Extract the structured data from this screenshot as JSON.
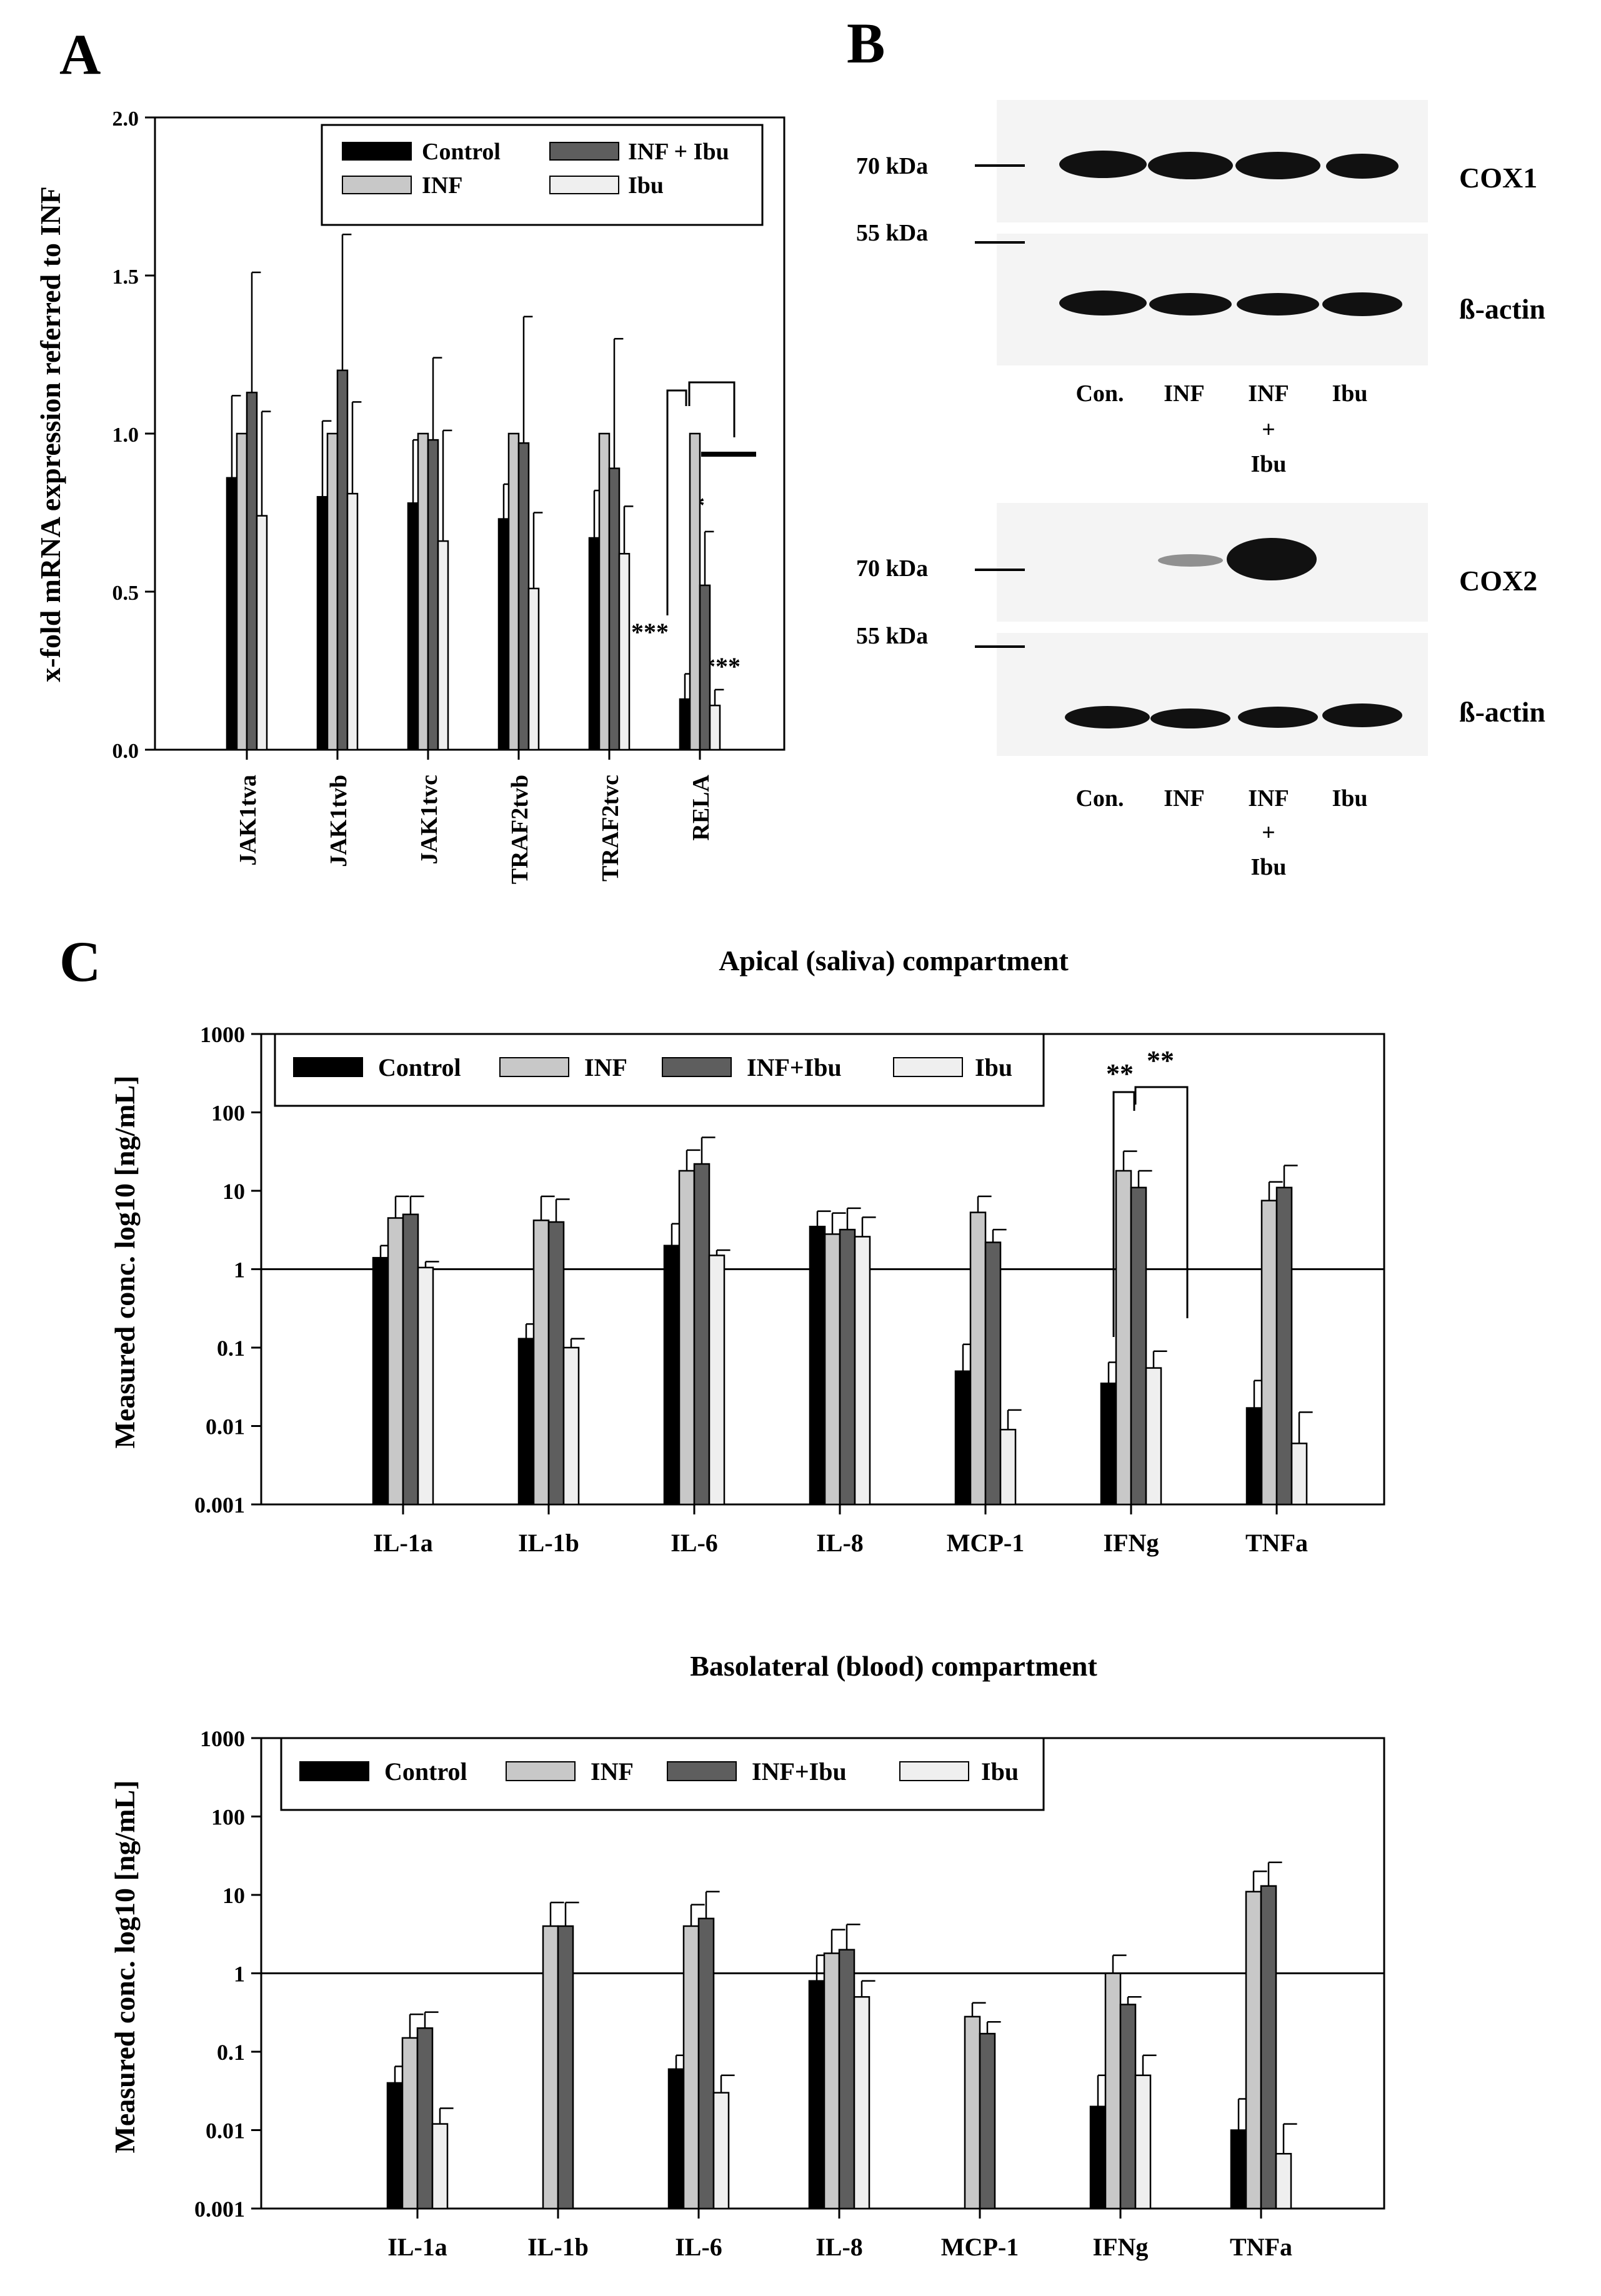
{
  "colors": {
    "control": "#000000",
    "inf": "#c8c8c8",
    "inf_ibu": "#5e5e5e",
    "ibu": "#efefef",
    "blot_bg": "#f4f4f4",
    "band": "#111111"
  },
  "panel_labels": {
    "a": "A",
    "b": "B",
    "c": "C"
  },
  "legend_a": {
    "control": "Control",
    "inf": "INF",
    "inf_ibu": "INF + Ibu",
    "ibu": "Ibu"
  },
  "legend_c": {
    "control": "Control",
    "inf": "INF",
    "inf_ibu": "INF+Ibu",
    "ibu": "Ibu"
  },
  "blot": {
    "kda_70": "70 kDa",
    "kda_55": "55 kDa",
    "cox1": "COX1",
    "cox2": "COX2",
    "bactin": "ß-actin",
    "lanes": [
      "Con.",
      "INF",
      "INF",
      "Ibu"
    ],
    "lane_plus": "+",
    "lane_ibu_sub": "Ibu"
  },
  "chart_data": [
    {
      "type": "bar",
      "panel": "A",
      "title": "",
      "xlabel": "",
      "ylabel": "x-fold mRNA expression referred to INF",
      "ylim": [
        0,
        2.0
      ],
      "yticks": [
        "0.0",
        "0.5",
        "1.0",
        "1.5",
        "2.0"
      ],
      "categories": [
        "JAK1tva",
        "JAK1tvb",
        "JAK1tvc",
        "TRAF2tvb",
        "TRAF2tvc",
        "RELA"
      ],
      "series": [
        {
          "name": "Control",
          "values": [
            0.86,
            0.8,
            0.78,
            0.73,
            0.67,
            0.16
          ],
          "errors": [
            0.26,
            0.24,
            0.2,
            0.11,
            0.15,
            0.08
          ]
        },
        {
          "name": "INF",
          "values": [
            1.0,
            1.0,
            1.0,
            1.0,
            1.0,
            1.0
          ],
          "errors": [
            0,
            0,
            0,
            0,
            0,
            0
          ]
        },
        {
          "name": "INF + Ibu",
          "values": [
            1.13,
            1.2,
            0.98,
            0.97,
            0.89,
            0.52
          ],
          "errors": [
            0.38,
            0.43,
            0.26,
            0.4,
            0.41,
            0.17
          ]
        },
        {
          "name": "Ibu",
          "values": [
            0.74,
            0.81,
            0.66,
            0.51,
            0.62,
            0.14
          ],
          "errors": [
            0.33,
            0.29,
            0.35,
            0.24,
            0.15,
            0.05
          ]
        }
      ],
      "annotations": [
        "***",
        "*",
        "***"
      ]
    },
    {
      "type": "bar",
      "panel": "C-top",
      "title": "Apical (saliva) compartment",
      "xlabel": "",
      "ylabel": "Measured conc. log10 [ng/mL]",
      "yscale": "log",
      "ylim": [
        0.001,
        1000
      ],
      "yticks": [
        "0.001",
        "0.01",
        "0.1",
        "1",
        "10",
        "100",
        "1000"
      ],
      "categories": [
        "IL-1a",
        "IL-1b",
        "IL-6",
        "IL-8",
        "MCP-1",
        "IFNg",
        "TNFa"
      ],
      "series": [
        {
          "name": "Control",
          "values": [
            1.4,
            0.13,
            2.0,
            3.5,
            0.05,
            0.035,
            0.017
          ],
          "error_tops": [
            2.0,
            0.2,
            3.8,
            5.5,
            0.11,
            0.065,
            0.038
          ]
        },
        {
          "name": "INF",
          "values": [
            4.5,
            4.2,
            18,
            2.8,
            5.3,
            18,
            7.5
          ],
          "error_tops": [
            8.5,
            8.5,
            33,
            5.2,
            8.5,
            32,
            13
          ]
        },
        {
          "name": "INF+Ibu",
          "values": [
            5.0,
            4.0,
            22,
            3.2,
            2.2,
            11,
            11
          ],
          "error_tops": [
            8.5,
            7.8,
            48,
            6.0,
            3.2,
            18,
            21
          ]
        },
        {
          "name": "Ibu",
          "values": [
            1.05,
            0.1,
            1.5,
            2.6,
            0.009,
            0.055,
            0.006
          ],
          "error_tops": [
            1.25,
            0.13,
            1.75,
            4.6,
            0.016,
            0.09,
            0.015
          ]
        }
      ],
      "annotations": [
        "**",
        "**"
      ]
    },
    {
      "type": "bar",
      "panel": "C-bottom",
      "title": "Basolateral (blood) compartment",
      "xlabel": "",
      "ylabel": "Measured conc. log10 [ng/mL]",
      "yscale": "log",
      "ylim": [
        0.001,
        1000
      ],
      "yticks": [
        "0.001",
        "0.01",
        "0.1",
        "1",
        "10",
        "100",
        "1000"
      ],
      "categories": [
        "IL-1a",
        "IL-1b",
        "IL-6",
        "IL-8",
        "MCP-1",
        "IFNg",
        "TNFa"
      ],
      "series": [
        {
          "name": "Control",
          "values": [
            0.04,
            null,
            0.06,
            0.8,
            null,
            0.02,
            0.01
          ],
          "error_tops": [
            0.065,
            null,
            0.09,
            1.7,
            null,
            0.05,
            0.025
          ]
        },
        {
          "name": "INF",
          "values": [
            0.15,
            4.0,
            4.0,
            1.8,
            0.28,
            1.0,
            11
          ],
          "error_tops": [
            0.3,
            8.0,
            7.5,
            3.6,
            0.42,
            1.7,
            20
          ]
        },
        {
          "name": "INF+Ibu",
          "values": [
            0.2,
            4.0,
            5.0,
            2.0,
            0.17,
            0.4,
            13
          ],
          "error_tops": [
            0.32,
            8.0,
            11,
            4.2,
            0.24,
            0.5,
            26
          ]
        },
        {
          "name": "Ibu",
          "values": [
            0.012,
            null,
            0.03,
            0.5,
            null,
            0.05,
            0.005
          ],
          "error_tops": [
            0.019,
            null,
            0.05,
            0.8,
            null,
            0.09,
            0.012
          ]
        }
      ]
    }
  ]
}
